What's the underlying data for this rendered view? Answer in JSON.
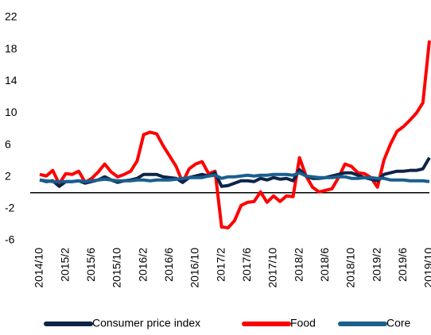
{
  "chart_data": {
    "type": "line",
    "categories": [
      "2014/10",
      null,
      null,
      null,
      "2015/2",
      null,
      null,
      null,
      "2015/6",
      null,
      null,
      null,
      "2015/10",
      null,
      null,
      null,
      "2016/2",
      null,
      null,
      null,
      "2016/6",
      null,
      null,
      null,
      "2016/10",
      null,
      null,
      null,
      "2017/2",
      null,
      null,
      null,
      "2017/6",
      null,
      null,
      null,
      "2017/10",
      null,
      null,
      null,
      "2018/2",
      null,
      null,
      null,
      "2018/6",
      null,
      null,
      null,
      "2018/10",
      null,
      null,
      null,
      "2019/2",
      null,
      null,
      null,
      "2019/6",
      null,
      null,
      null,
      "2019/10"
    ],
    "series": [
      {
        "name": "Consumer price index",
        "color": "#0d2449",
        "values": [
          1.6,
          1.4,
          1.5,
          0.8,
          1.4,
          1.4,
          1.5,
          1.2,
          1.4,
          1.6,
          2.0,
          1.6,
          1.3,
          1.5,
          1.6,
          1.8,
          2.3,
          2.3,
          2.3,
          2.0,
          1.9,
          1.8,
          1.3,
          1.9,
          2.1,
          2.3,
          2.1,
          2.5,
          0.8,
          0.9,
          1.2,
          1.5,
          1.5,
          1.4,
          1.8,
          1.6,
          1.9,
          1.7,
          1.8,
          1.5,
          2.9,
          2.1,
          1.8,
          1.8,
          1.9,
          2.1,
          2.3,
          2.5,
          2.5,
          2.2,
          1.9,
          1.7,
          1.5,
          2.3,
          2.5,
          2.7,
          2.7,
          2.8,
          2.8,
          3.0,
          4.4
        ]
      },
      {
        "name": "Food",
        "color": "#ff0000",
        "values": [
          2.3,
          2.1,
          2.8,
          1.1,
          2.4,
          2.3,
          2.7,
          1.3,
          1.8,
          2.6,
          3.6,
          2.6,
          2.0,
          2.3,
          2.7,
          4.0,
          7.3,
          7.6,
          7.4,
          5.9,
          4.6,
          3.3,
          1.3,
          3.0,
          3.6,
          3.9,
          2.4,
          2.7,
          -4.3,
          -4.4,
          -3.5,
          -1.6,
          -1.2,
          -1.1,
          0.1,
          -1.2,
          -0.4,
          -1.1,
          -0.4,
          -0.5,
          4.4,
          2.1,
          0.7,
          0.1,
          0.3,
          0.5,
          1.9,
          3.6,
          3.3,
          2.5,
          2.4,
          1.9,
          0.7,
          4.1,
          6.1,
          7.7,
          8.3,
          9.1,
          10.0,
          11.3,
          19.1
        ]
      },
      {
        "name": "Core",
        "color": "#1a5f8f",
        "values": [
          1.6,
          1.5,
          1.4,
          1.4,
          1.4,
          1.4,
          1.5,
          1.4,
          1.5,
          1.6,
          1.7,
          1.6,
          1.5,
          1.5,
          1.5,
          1.6,
          1.6,
          1.5,
          1.6,
          1.6,
          1.6,
          1.7,
          1.8,
          1.9,
          1.9,
          1.9,
          2.1,
          2.2,
          1.8,
          2.0,
          2.0,
          2.1,
          2.2,
          2.1,
          2.2,
          2.2,
          2.3,
          2.3,
          2.3,
          2.2,
          2.5,
          2.1,
          2.0,
          1.9,
          1.9,
          1.9,
          2.0,
          2.0,
          1.8,
          1.8,
          1.9,
          1.9,
          1.8,
          1.8,
          1.6,
          1.6,
          1.6,
          1.5,
          1.5,
          1.5,
          1.4
        ]
      }
    ],
    "ylim": [
      -6,
      22
    ],
    "yticks": [
      -6,
      -2,
      2,
      6,
      10,
      14,
      18,
      22
    ],
    "zero_line": true,
    "legend": "bottom"
  }
}
